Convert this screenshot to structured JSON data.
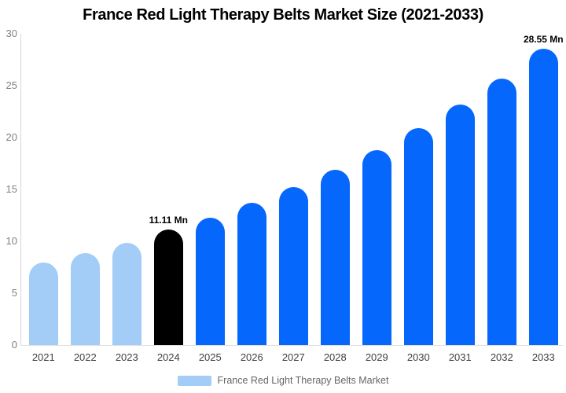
{
  "chart_data": {
    "type": "bar",
    "title": "France Red Light Therapy Belts Market Size (2021-2033)",
    "unit": "Mn",
    "categories": [
      "2021",
      "2022",
      "2023",
      "2024",
      "2025",
      "2026",
      "2027",
      "2028",
      "2029",
      "2030",
      "2031",
      "2032",
      "2033"
    ],
    "series": [
      {
        "name": "France Red Light Therapy Belts Market",
        "values": [
          7.95,
          8.9,
          9.85,
          11.11,
          12.3,
          13.7,
          15.2,
          16.9,
          18.8,
          20.9,
          23.2,
          25.7,
          28.55
        ]
      }
    ],
    "bar_colors": [
      "#A3CCF6",
      "#A3CCF6",
      "#A3CCF6",
      "#000000",
      "#0667FD",
      "#0667FD",
      "#0667FD",
      "#0667FD",
      "#0667FD",
      "#0667FD",
      "#0667FD",
      "#0667FD",
      "#0667FD"
    ],
    "annotations": [
      {
        "category": "2024",
        "text": "11.11 Mn"
      },
      {
        "category": "2033",
        "text": "28.55 Mn"
      }
    ],
    "ylim": [
      0,
      30
    ],
    "yticks": [
      0,
      5,
      10,
      15,
      20,
      25,
      30
    ],
    "grid": false,
    "legend": {
      "position": "bottom",
      "label": "France Red Light Therapy Belts Market",
      "color": "#A3CCF6"
    }
  },
  "colors": {
    "historical_bar": "#A3CCF6",
    "base_year_bar": "#000000",
    "forecast_bar": "#0667FD",
    "title_text": "#000000",
    "y_axis_text": "#808080",
    "x_axis_text": "#3f3f3f",
    "legend_text": "#666666",
    "axis_line": "#d6d6d6"
  }
}
